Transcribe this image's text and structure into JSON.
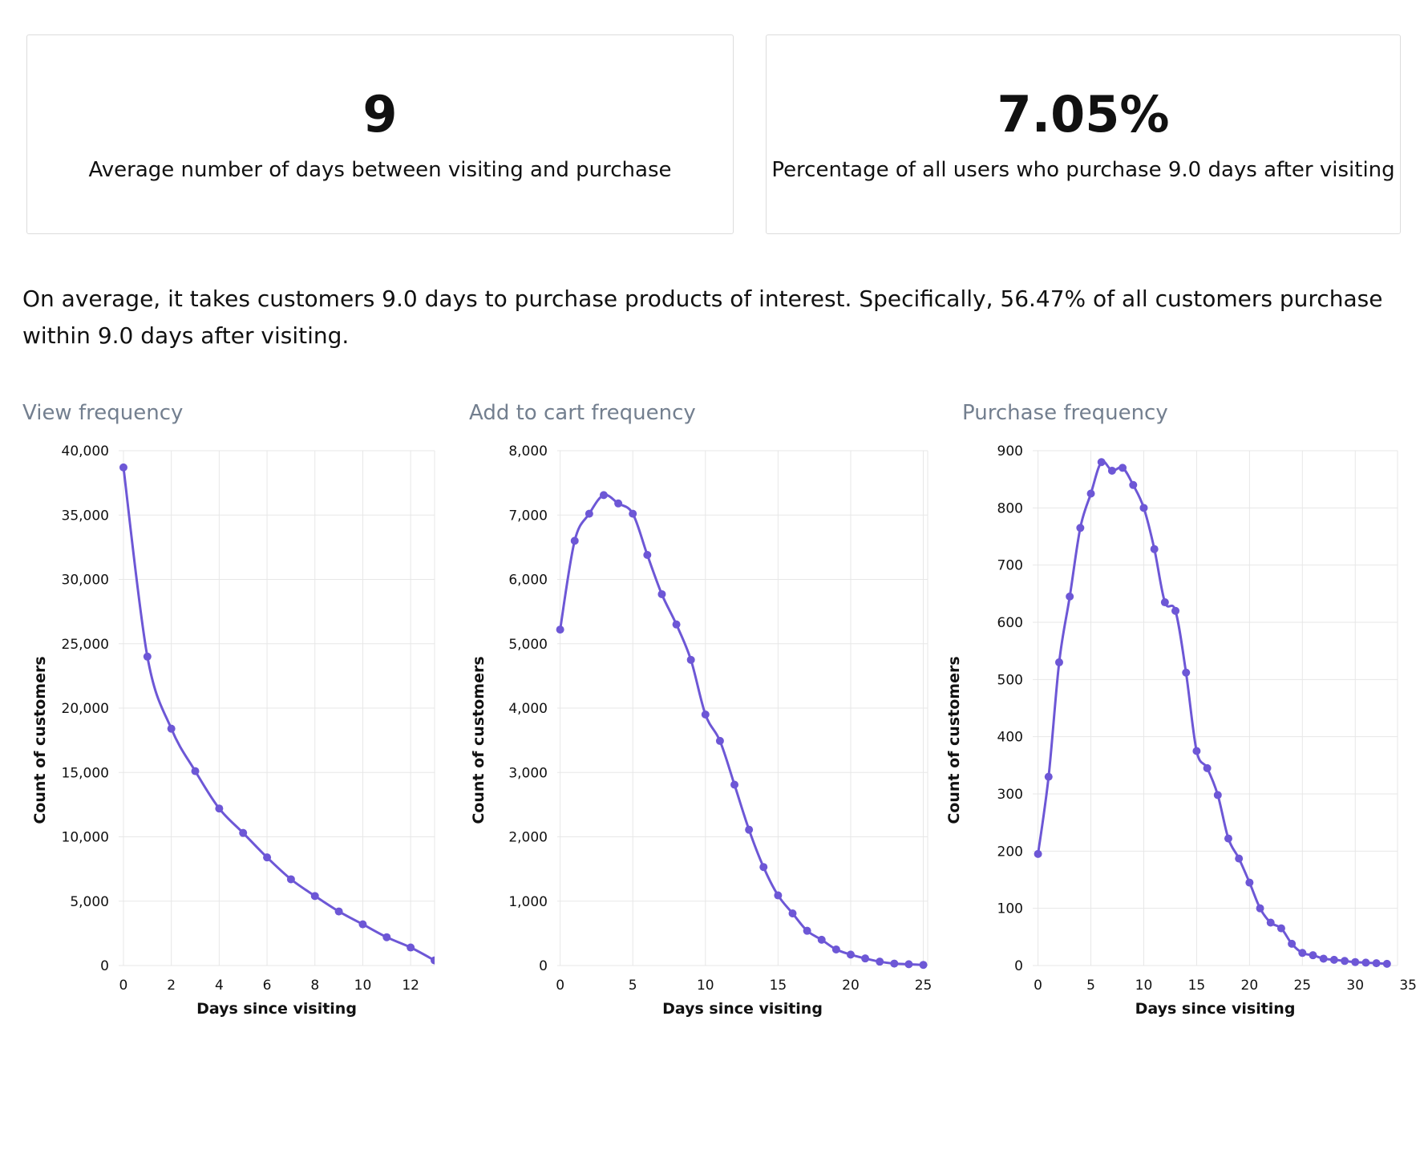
{
  "kpis": [
    {
      "value": "9",
      "label": "Average number of days between visiting and purchase"
    },
    {
      "value": "7.05%",
      "label": "Percentage of all users who purchase 9.0 days after visiting"
    }
  ],
  "summary": "On average, it takes customers 9.0 days to purchase products of interest. Specifically, 56.47% of all customers  purchase within 9.0 days after visiting.",
  "colors": {
    "series": "#6d57d6",
    "grid": "#e7e7e7",
    "title": "#737f8f"
  },
  "chart_data": [
    {
      "type": "line",
      "title": "View frequency",
      "xlabel": "Days since visiting",
      "ylabel": "Count of customers",
      "xlim": [
        -0.2,
        13
      ],
      "ylim": [
        0,
        40000
      ],
      "xticks": [
        0,
        2,
        4,
        6,
        8,
        10,
        12
      ],
      "yticks": [
        0,
        5000,
        10000,
        15000,
        20000,
        25000,
        30000,
        35000,
        40000
      ],
      "tick_labels_y": [
        "0",
        "5,000",
        "10,000",
        "15,000",
        "20,000",
        "25,000",
        "30,000",
        "35,000",
        "40,000"
      ],
      "grid": true,
      "x": [
        0,
        1,
        2,
        3,
        4,
        5,
        6,
        7,
        8,
        9,
        10,
        11,
        12,
        13
      ],
      "y": [
        38700,
        24000,
        18400,
        15100,
        12200,
        10300,
        8400,
        6700,
        5400,
        4200,
        3200,
        2200,
        1400,
        400
      ]
    },
    {
      "type": "line",
      "title": "Add to cart frequency",
      "xlabel": "Days since visiting",
      "ylabel": "Count of customers",
      "xlim": [
        -0.2,
        25.3
      ],
      "ylim": [
        0,
        8000
      ],
      "xticks": [
        0,
        5,
        10,
        15,
        20,
        25
      ],
      "yticks": [
        0,
        1000,
        2000,
        3000,
        4000,
        5000,
        6000,
        7000,
        8000
      ],
      "tick_labels_y": [
        "0",
        "1,000",
        "2,000",
        "3,000",
        "4,000",
        "5,000",
        "6,000",
        "7,000",
        "8,000"
      ],
      "grid": true,
      "x": [
        0,
        1,
        2,
        3,
        4,
        5,
        6,
        7,
        8,
        9,
        10,
        11,
        12,
        13,
        14,
        15,
        16,
        17,
        18,
        19,
        20,
        21,
        22,
        23,
        24,
        25
      ],
      "y": [
        5220,
        6600,
        7020,
        7310,
        7180,
        7020,
        6380,
        5770,
        5300,
        4750,
        3900,
        3490,
        2810,
        2110,
        1530,
        1090,
        810,
        540,
        400,
        250,
        170,
        110,
        60,
        30,
        20,
        10
      ]
    },
    {
      "type": "line",
      "title": "Purchase frequency",
      "xlabel": "Days since visiting",
      "ylabel": "Count of customers",
      "xlim": [
        -0.5,
        34
      ],
      "ylim": [
        0,
        900
      ],
      "xticks": [
        0,
        5,
        10,
        15,
        20,
        25,
        30,
        35
      ],
      "yticks": [
        0,
        100,
        200,
        300,
        400,
        500,
        600,
        700,
        800,
        900
      ],
      "tick_labels_y": [
        "0",
        "100",
        "200",
        "300",
        "400",
        "500",
        "600",
        "700",
        "800",
        "900"
      ],
      "grid": true,
      "x": [
        0,
        1,
        2,
        3,
        4,
        5,
        6,
        7,
        8,
        9,
        10,
        11,
        12,
        13,
        14,
        15,
        16,
        17,
        18,
        19,
        20,
        21,
        22,
        23,
        24,
        25,
        26,
        27,
        28,
        29,
        30,
        31,
        32,
        33
      ],
      "y": [
        195,
        330,
        530,
        645,
        765,
        825,
        880,
        865,
        870,
        840,
        800,
        728,
        635,
        620,
        512,
        375,
        345,
        298,
        222,
        187,
        145,
        100,
        75,
        65,
        38,
        22,
        18,
        12,
        10,
        8,
        6,
        5,
        4,
        3
      ]
    }
  ]
}
